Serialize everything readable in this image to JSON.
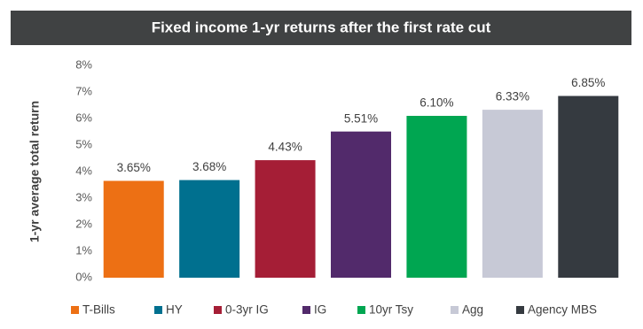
{
  "chart_data": {
    "type": "bar",
    "title": "Fixed income 1-yr returns after the first rate cut",
    "y_label": "1-yr average total return",
    "categories": [
      "T-Bills",
      "HY",
      "0-3yr IG",
      "IG",
      "10yr Tsy",
      "Agg",
      "Agency MBS"
    ],
    "values": [
      3.65,
      3.68,
      4.43,
      5.51,
      6.1,
      6.33,
      6.85
    ],
    "value_labels": [
      "3.65%",
      "3.68%",
      "4.43%",
      "5.51%",
      "6.10%",
      "6.33%",
      "6.85%"
    ],
    "colors": [
      "#ed7014",
      "#00708f",
      "#a51e36",
      "#522a6b",
      "#00a651",
      "#c7c9d6",
      "#353a40"
    ],
    "ylim": [
      0,
      8
    ],
    "yticks": [
      {
        "value": 0,
        "label": "0%"
      },
      {
        "value": 1,
        "label": "1%"
      },
      {
        "value": 2,
        "label": "2%"
      },
      {
        "value": 3,
        "label": "3%"
      },
      {
        "value": 4,
        "label": "4%"
      },
      {
        "value": 5,
        "label": "5%"
      },
      {
        "value": 6,
        "label": "6%"
      },
      {
        "value": 7,
        "label": "7%"
      },
      {
        "value": 8,
        "label": "8%"
      }
    ],
    "grid": false,
    "legend": "bottom"
  }
}
